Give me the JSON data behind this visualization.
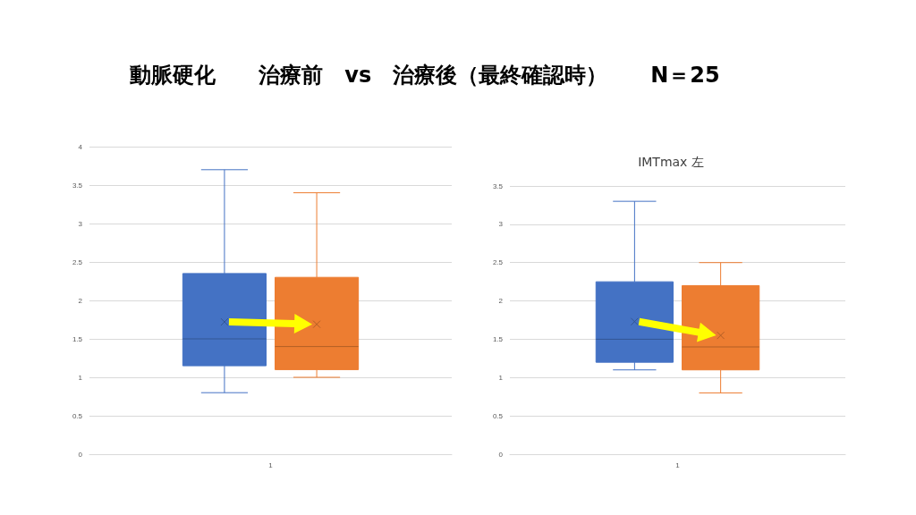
{
  "chart_data": [
    {
      "type": "box",
      "title": "動脈硬化　　治療前　vs　治療後（最終確認時）　　N＝25",
      "categories": [
        "1"
      ],
      "ylim": [
        0,
        4
      ],
      "yticks": [
        0,
        0.5,
        1,
        1.5,
        2,
        2.5,
        3,
        3.5,
        4
      ],
      "grid": "y",
      "series": [
        {
          "color": "#4472c4",
          "boxes": [
            {
              "low": 0.8,
              "q1": 1.15,
              "median": 1.5,
              "q3": 2.35,
              "high": 3.7,
              "mean": 1.72
            }
          ]
        },
        {
          "color": "#ed7d31",
          "boxes": [
            {
              "low": 1.0,
              "q1": 1.1,
              "median": 1.4,
              "q3": 2.3,
              "high": 3.4,
              "mean": 1.69
            }
          ]
        }
      ]
    },
    {
      "type": "box",
      "title": "IMTmax 左",
      "categories": [
        "1"
      ],
      "ylim": [
        0,
        3.5
      ],
      "yticks": [
        0,
        0.5,
        1,
        1.5,
        2,
        2.5,
        3,
        3.5
      ],
      "grid": "y",
      "series": [
        {
          "color": "#4472c4",
          "boxes": [
            {
              "low": 1.1,
              "q1": 1.2,
              "median": 1.5,
              "q3": 2.25,
              "high": 3.3,
              "mean": 1.73
            }
          ]
        },
        {
          "color": "#ed7d31",
          "boxes": [
            {
              "low": 0.8,
              "q1": 1.1,
              "median": 1.4,
              "q3": 2.2,
              "high": 2.5,
              "mean": 1.55
            }
          ]
        }
      ]
    }
  ]
}
